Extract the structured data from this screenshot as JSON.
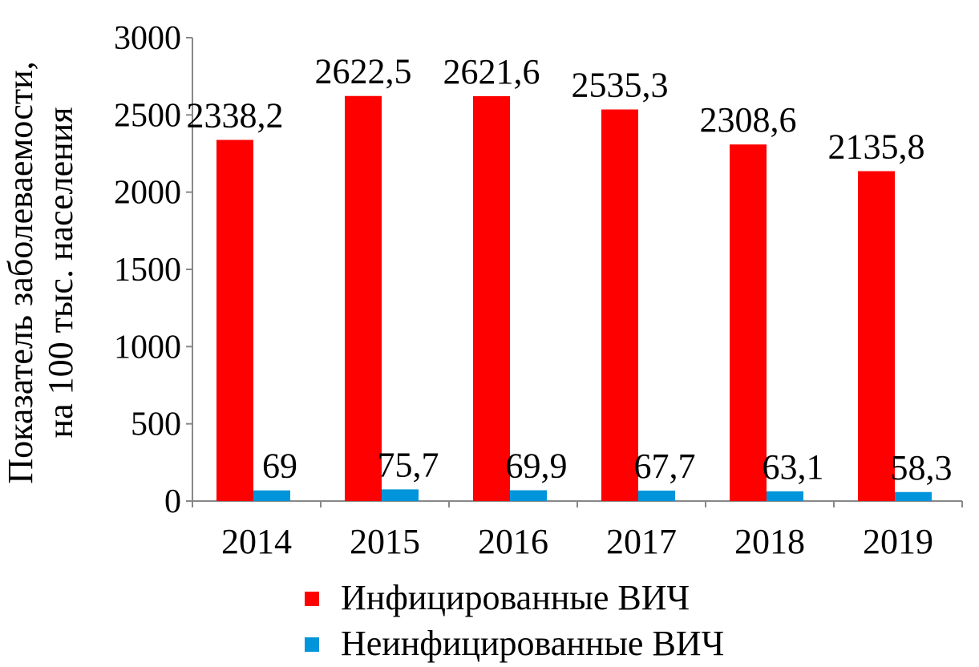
{
  "chart_data": {
    "type": "bar",
    "title": "",
    "xlabel": "",
    "ylabel": [
      "Показатель заболеваемости,",
      "на 100 тыс. населения"
    ],
    "categories": [
      "2014",
      "2015",
      "2016",
      "2017",
      "2018",
      "2019"
    ],
    "ylim": [
      0,
      3000
    ],
    "yticks": [
      "0",
      "500",
      "1000",
      "1500",
      "2000",
      "2500",
      "3000"
    ],
    "grid": false,
    "legend_position": "bottom",
    "series": [
      {
        "name": "Инфицированные ВИЧ",
        "color": "#FF0000",
        "values": [
          2338.2,
          2622.5,
          2621.6,
          2535.3,
          2308.6,
          2135.8
        ],
        "labels": [
          "2338,2",
          "2622,5",
          "2621,6",
          "2535,3",
          "2308,6",
          "2135,8"
        ]
      },
      {
        "name": "Неинфицированные ВИЧ",
        "color": "#0095DA",
        "values": [
          69,
          75.7,
          69.9,
          67.7,
          63.1,
          58.3
        ],
        "labels": [
          "69",
          "75,7",
          "69,9",
          "67,7",
          "63,1",
          "58,3"
        ]
      }
    ]
  }
}
